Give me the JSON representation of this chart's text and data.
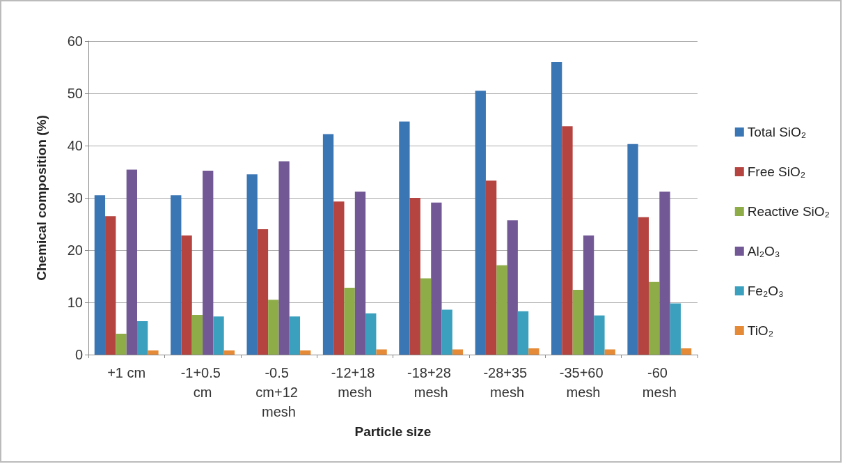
{
  "chart_data": {
    "type": "bar",
    "xlabel": "Particle size",
    "ylabel": "Chemical composition (%)",
    "categories": [
      "+1 cm",
      "-1+0.5 cm",
      "-0.5 cm+12 mesh",
      "-12+18 mesh",
      "-18+28 mesh",
      "-28+35 mesh",
      "-35+60 mesh",
      "-60 mesh"
    ],
    "series": [
      {
        "name": "Total SiO₂",
        "color": "#3a75b4",
        "values": [
          30.5,
          30.5,
          34.5,
          42.2,
          44.6,
          50.5,
          56,
          40.3
        ]
      },
      {
        "name": "Free SiO₂",
        "color": "#b54441",
        "values": [
          26.5,
          22.8,
          24,
          29.3,
          30,
          33.3,
          43.7,
          26.3
        ]
      },
      {
        "name": "Reactive SiO₂",
        "color": "#8ead48",
        "values": [
          4,
          7.6,
          10.5,
          12.8,
          14.6,
          17.1,
          12.4,
          13.9
        ]
      },
      {
        "name": "Al₂O₃",
        "color": "#725996",
        "values": [
          35.4,
          35.2,
          37,
          31.2,
          29.1,
          25.7,
          22.8,
          31.2
        ]
      },
      {
        "name": "Fe₂O₃",
        "color": "#3aa0bd",
        "values": [
          6.4,
          7.3,
          7.3,
          7.9,
          8.6,
          8.3,
          7.5,
          9.8
        ]
      },
      {
        "name": "TiO₂",
        "color": "#e58a36",
        "values": [
          0.8,
          0.8,
          0.8,
          1.0,
          1.0,
          1.2,
          1.0,
          1.2
        ]
      }
    ],
    "ylim": [
      0,
      60
    ],
    "yticks": [
      0,
      10,
      20,
      30,
      40,
      50,
      60
    ],
    "grid": "y",
    "legend": "right"
  }
}
